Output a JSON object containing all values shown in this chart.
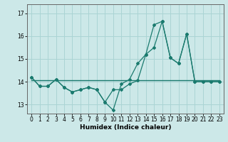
{
  "xlabel": "Humidex (Indice chaleur)",
  "bg_color": "#cce8e8",
  "line_color": "#1a7a6e",
  "grid_color": "#aad4d4",
  "ylim": [
    12.6,
    17.4
  ],
  "xlim": [
    -0.5,
    23.5
  ],
  "yticks": [
    13,
    14,
    15,
    16,
    17
  ],
  "xticks": [
    0,
    1,
    2,
    3,
    4,
    5,
    6,
    7,
    8,
    9,
    10,
    11,
    12,
    13,
    14,
    15,
    16,
    17,
    18,
    19,
    20,
    21,
    22,
    23
  ],
  "series1_x": [
    0,
    1,
    2,
    3,
    4,
    5,
    6,
    7,
    8,
    9,
    10,
    11,
    12,
    13,
    14,
    15,
    16,
    17,
    18,
    19,
    20,
    21,
    22,
    23
  ],
  "series1_y": [
    14.2,
    13.8,
    13.8,
    14.1,
    13.75,
    13.55,
    13.65,
    13.75,
    13.65,
    13.1,
    13.65,
    13.65,
    13.9,
    14.05,
    15.2,
    15.5,
    16.65,
    15.05,
    14.8,
    16.1,
    14.0,
    14.0,
    14.0,
    14.0
  ],
  "series2_x": [
    0,
    1,
    2,
    3,
    4,
    5,
    6,
    7,
    8,
    9,
    10,
    11,
    12,
    13,
    14,
    15,
    16,
    17,
    18,
    19,
    20,
    21,
    22,
    23
  ],
  "series2_y": [
    14.2,
    13.8,
    13.8,
    14.1,
    13.75,
    13.55,
    13.65,
    13.75,
    13.65,
    13.1,
    12.75,
    13.9,
    14.1,
    14.8,
    15.2,
    16.5,
    16.65,
    15.05,
    14.8,
    16.1,
    14.0,
    14.0,
    14.0,
    14.0
  ],
  "series3_x": [
    0,
    23
  ],
  "series3_y": [
    14.05,
    14.05
  ],
  "tick_fontsize": 5.5,
  "xlabel_fontsize": 6.5
}
